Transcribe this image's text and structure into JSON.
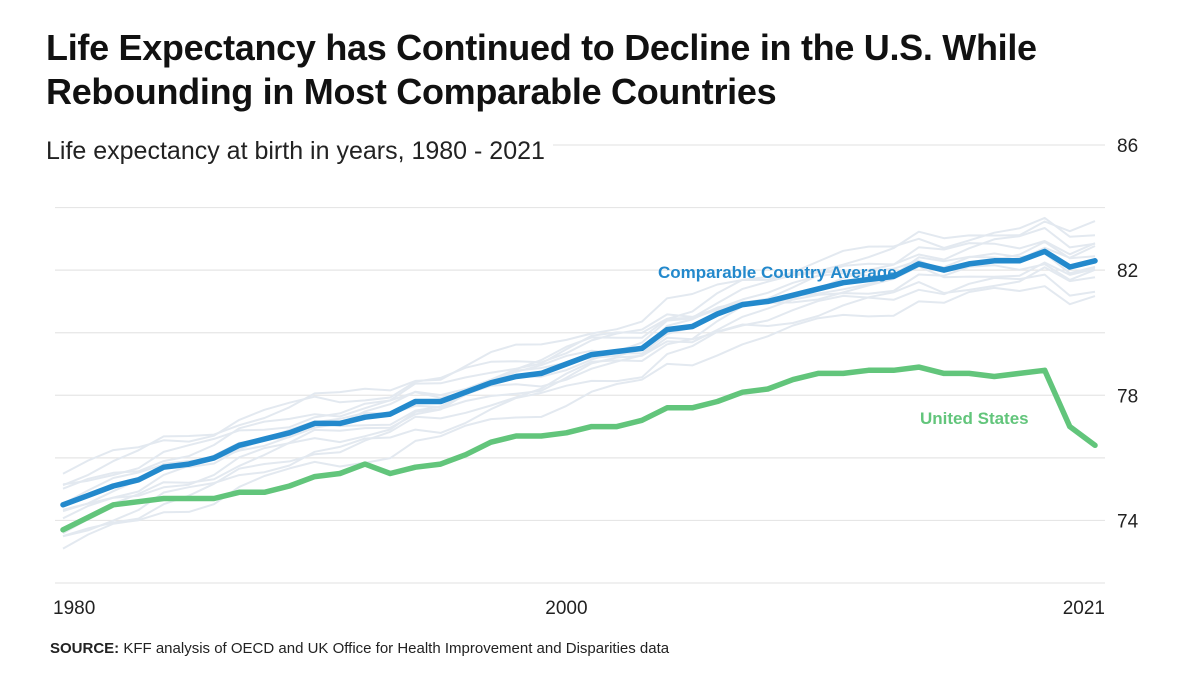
{
  "title": "Life Expectancy has Continued to Decline in the U.S. While Rebounding in Most Comparable Countries",
  "subtitle": "Life expectancy at birth in years, 1980 - 2021",
  "source": {
    "label": "SOURCE:",
    "text": "KFF analysis of OECD and UK Office for Health Improvement and Disparities data"
  },
  "colors": {
    "comparable": "#2389cc",
    "us": "#62c57b",
    "background_lines": "#e3e9f0",
    "grid": "#e6e6e6"
  },
  "chart_data": {
    "type": "line",
    "title": "Life Expectancy has Continued to Decline in the U.S. While Rebounding in Most Comparable Countries",
    "subtitle": "Life expectancy at birth in years, 1980 - 2021",
    "xlabel": "",
    "ylabel": "",
    "xlim": [
      1980,
      2021
    ],
    "ylim": [
      72,
      86
    ],
    "yticks": [
      74,
      78,
      82,
      86
    ],
    "xtick_labels": [
      "1980",
      "2000",
      "2021"
    ],
    "grid": true,
    "x": [
      1980,
      1981,
      1982,
      1983,
      1984,
      1985,
      1986,
      1987,
      1988,
      1989,
      1990,
      1991,
      1992,
      1993,
      1994,
      1995,
      1996,
      1997,
      1998,
      1999,
      2000,
      2001,
      2002,
      2003,
      2004,
      2005,
      2006,
      2007,
      2008,
      2009,
      2010,
      2011,
      2012,
      2013,
      2014,
      2015,
      2016,
      2017,
      2018,
      2019,
      2020,
      2021
    ],
    "series": [
      {
        "name": "Comparable Country Average",
        "label": "Comparable Country Average",
        "values": [
          74.5,
          74.8,
          75.1,
          75.3,
          75.7,
          75.8,
          76.0,
          76.4,
          76.6,
          76.8,
          77.1,
          77.1,
          77.3,
          77.4,
          77.8,
          77.8,
          78.1,
          78.4,
          78.6,
          78.7,
          79.0,
          79.3,
          79.4,
          79.5,
          80.1,
          80.2,
          80.6,
          80.9,
          81.0,
          81.2,
          81.4,
          81.6,
          81.7,
          81.8,
          82.2,
          82.0,
          82.2,
          82.3,
          82.3,
          82.6,
          82.1,
          82.3
        ]
      },
      {
        "name": "United States",
        "label": "United States",
        "values": [
          73.7,
          74.1,
          74.5,
          74.6,
          74.7,
          74.7,
          74.7,
          74.9,
          74.9,
          75.1,
          75.4,
          75.5,
          75.8,
          75.5,
          75.7,
          75.8,
          76.1,
          76.5,
          76.7,
          76.7,
          76.8,
          77.0,
          77.0,
          77.2,
          77.6,
          77.6,
          77.8,
          78.1,
          78.2,
          78.5,
          78.7,
          78.7,
          78.8,
          78.8,
          78.9,
          78.7,
          78.7,
          78.6,
          78.7,
          78.8,
          77.0,
          76.4
        ]
      }
    ],
    "background_series_count": 12,
    "annotations": [
      "Comparable Country Average",
      "United States"
    ]
  }
}
